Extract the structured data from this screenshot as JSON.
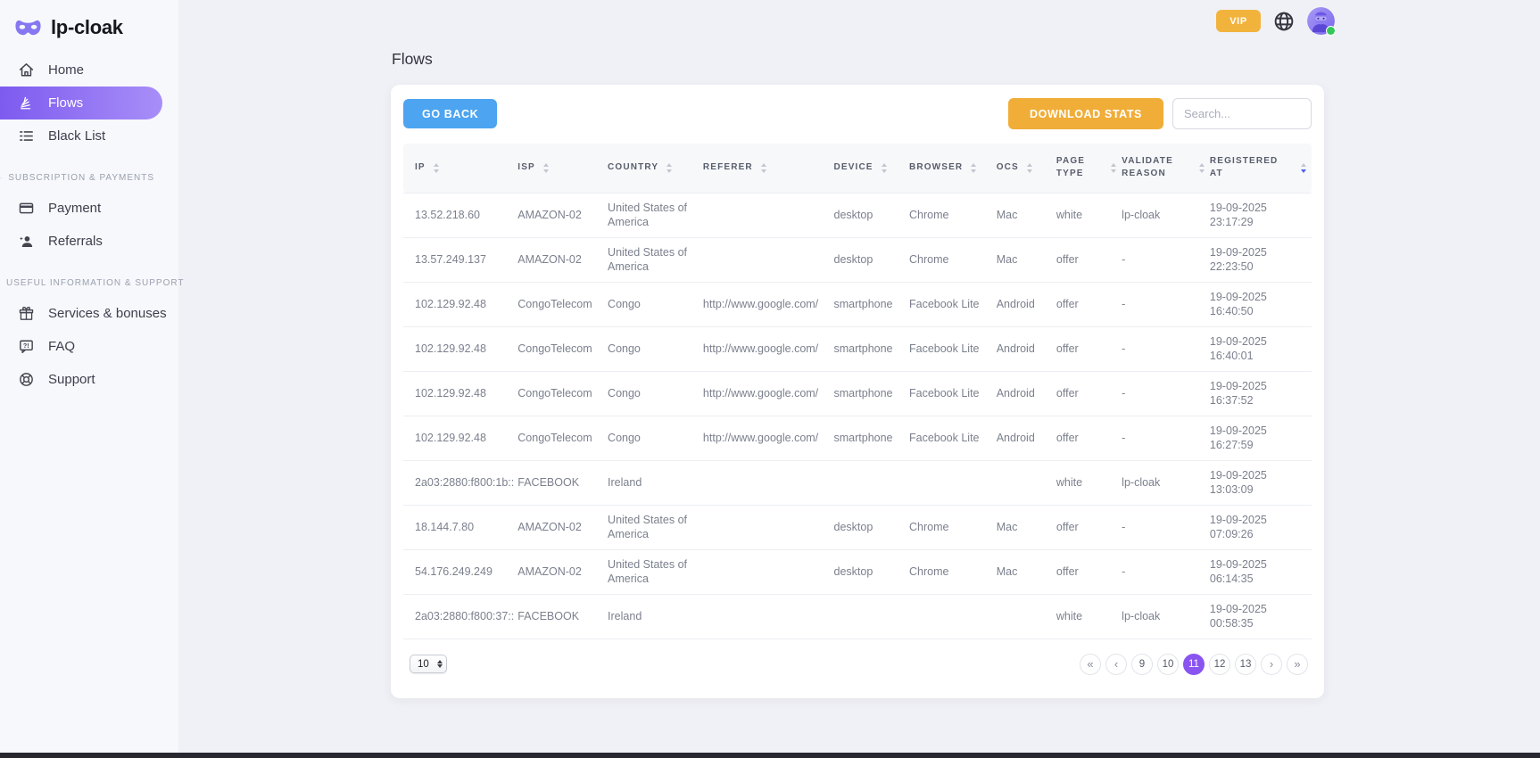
{
  "brand": {
    "name": "lp-cloak"
  },
  "topbar": {
    "vip_label": "VIP",
    "avatar_status": "online"
  },
  "sidebar": {
    "sections": [
      {
        "label": "",
        "items": [
          {
            "label": "Home",
            "icon": "home-icon",
            "active": false
          },
          {
            "label": "Flows",
            "icon": "flows-icon",
            "active": true
          },
          {
            "label": "Black List",
            "icon": "blacklist-icon",
            "active": false
          }
        ]
      },
      {
        "label": "SUBSCRIPTION & PAYMENTS",
        "items": [
          {
            "label": "Payment",
            "icon": "payment-icon",
            "active": false
          },
          {
            "label": "Referrals",
            "icon": "referrals-icon",
            "active": false
          }
        ]
      },
      {
        "label": "USEFUL INFORMATION & SUPPORT",
        "items": [
          {
            "label": "Services & bonuses",
            "icon": "gift-icon",
            "active": false
          },
          {
            "label": "FAQ",
            "icon": "faq-icon",
            "active": false
          },
          {
            "label": "Support",
            "icon": "support-icon",
            "active": false
          }
        ]
      }
    ]
  },
  "page": {
    "title": "Flows"
  },
  "toolbar": {
    "go_back": "GO BACK",
    "download_stats": "DOWNLOAD STATS",
    "search_placeholder": "Search..."
  },
  "table": {
    "columns": [
      {
        "key": "ip",
        "label": "IP",
        "sort": "none"
      },
      {
        "key": "isp",
        "label": "ISP",
        "sort": "none"
      },
      {
        "key": "country",
        "label": "COUNTRY",
        "sort": "none"
      },
      {
        "key": "referer",
        "label": "REFERER",
        "sort": "none"
      },
      {
        "key": "device",
        "label": "DEVICE",
        "sort": "none"
      },
      {
        "key": "browser",
        "label": "BROWSER",
        "sort": "none"
      },
      {
        "key": "ocs",
        "label": "OCS",
        "sort": "none"
      },
      {
        "key": "page_type",
        "label": "PAGE TYPE",
        "sort": "none"
      },
      {
        "key": "validate_reason",
        "label": "VALIDATE REASON",
        "sort": "none"
      },
      {
        "key": "registered_at",
        "label": "REGISTERED AT",
        "sort": "desc"
      }
    ],
    "rows": [
      {
        "ip": "13.52.218.60",
        "isp": "AMAZON-02",
        "country": "United States of America",
        "referer": "",
        "device": "desktop",
        "browser": "Chrome",
        "ocs": "Mac",
        "page_type": "white",
        "validate_reason": "lp-cloak",
        "registered_at": "19-09-2025 23:17:29"
      },
      {
        "ip": "13.57.249.137",
        "isp": "AMAZON-02",
        "country": "United States of America",
        "referer": "",
        "device": "desktop",
        "browser": "Chrome",
        "ocs": "Mac",
        "page_type": "offer",
        "validate_reason": "-",
        "registered_at": "19-09-2025 22:23:50"
      },
      {
        "ip": "102.129.92.48",
        "isp": "CongoTelecom",
        "country": "Congo",
        "referer": "http://www.google.com/",
        "device": "smartphone",
        "browser": "Facebook Lite",
        "ocs": "Android",
        "page_type": "offer",
        "validate_reason": "-",
        "registered_at": "19-09-2025 16:40:50"
      },
      {
        "ip": "102.129.92.48",
        "isp": "CongoTelecom",
        "country": "Congo",
        "referer": "http://www.google.com/",
        "device": "smartphone",
        "browser": "Facebook Lite",
        "ocs": "Android",
        "page_type": "offer",
        "validate_reason": "-",
        "registered_at": "19-09-2025 16:40:01"
      },
      {
        "ip": "102.129.92.48",
        "isp": "CongoTelecom",
        "country": "Congo",
        "referer": "http://www.google.com/",
        "device": "smartphone",
        "browser": "Facebook Lite",
        "ocs": "Android",
        "page_type": "offer",
        "validate_reason": "-",
        "registered_at": "19-09-2025 16:37:52"
      },
      {
        "ip": "102.129.92.48",
        "isp": "CongoTelecom",
        "country": "Congo",
        "referer": "http://www.google.com/",
        "device": "smartphone",
        "browser": "Facebook Lite",
        "ocs": "Android",
        "page_type": "offer",
        "validate_reason": "-",
        "registered_at": "19-09-2025 16:27:59"
      },
      {
        "ip": "2a03:2880:f800:1b::",
        "isp": "FACEBOOK",
        "country": "Ireland",
        "referer": "",
        "device": "",
        "browser": "",
        "ocs": "",
        "page_type": "white",
        "validate_reason": "lp-cloak",
        "registered_at": "19-09-2025 13:03:09"
      },
      {
        "ip": "18.144.7.80",
        "isp": "AMAZON-02",
        "country": "United States of America",
        "referer": "",
        "device": "desktop",
        "browser": "Chrome",
        "ocs": "Mac",
        "page_type": "offer",
        "validate_reason": "-",
        "registered_at": "19-09-2025 07:09:26"
      },
      {
        "ip": "54.176.249.249",
        "isp": "AMAZON-02",
        "country": "United States of America",
        "referer": "",
        "device": "desktop",
        "browser": "Chrome",
        "ocs": "Mac",
        "page_type": "offer",
        "validate_reason": "-",
        "registered_at": "19-09-2025 06:14:35"
      },
      {
        "ip": "2a03:2880:f800:37::",
        "isp": "FACEBOOK",
        "country": "Ireland",
        "referer": "",
        "device": "",
        "browser": "",
        "ocs": "",
        "page_type": "white",
        "validate_reason": "lp-cloak",
        "registered_at": "19-09-2025 00:58:35"
      }
    ]
  },
  "pagination": {
    "page_size": "10",
    "items": [
      {
        "label": "«",
        "type": "first",
        "active": false
      },
      {
        "label": "‹",
        "type": "prev",
        "active": false
      },
      {
        "label": "9",
        "type": "page",
        "active": false
      },
      {
        "label": "10",
        "type": "page",
        "active": false
      },
      {
        "label": "11",
        "type": "page",
        "active": true
      },
      {
        "label": "12",
        "type": "page",
        "active": false
      },
      {
        "label": "13",
        "type": "page",
        "active": false
      },
      {
        "label": "›",
        "type": "next",
        "active": false
      },
      {
        "label": "»",
        "type": "last",
        "active": false
      }
    ]
  },
  "colors": {
    "accent_purple": "#8a54f1",
    "nav_gradient_start": "#7d5bef",
    "nav_gradient_end": "#a88ef8",
    "blue_button": "#4da4f0",
    "orange_button": "#f0ad38",
    "vip_button": "#f2b33d",
    "sort_active_blue": "#4c60ee",
    "online_green": "#35c759"
  }
}
